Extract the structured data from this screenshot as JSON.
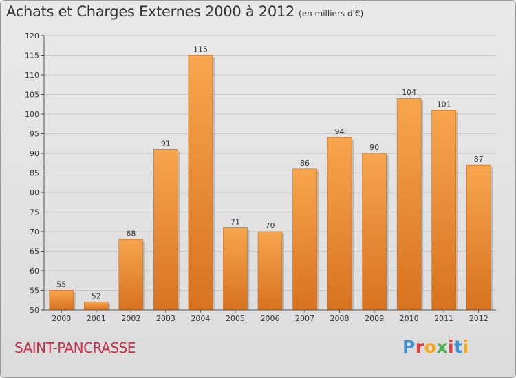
{
  "header": {
    "title": "Achats et Charges Externes 2000 à 2012",
    "unit": "(en milliers d'€)"
  },
  "footer": {
    "city": "SAINT-PANCRASSE",
    "logo": {
      "text": "Proxiti",
      "colors": [
        "#3a8fd6",
        "#e23b3b",
        "#f5a623",
        "#4caf50",
        "#e23b3b",
        "#3a8fd6",
        "#f5a623"
      ]
    }
  },
  "colors": {
    "bar_top": "#f7a64e",
    "bar_bottom": "#d8721f",
    "bar_shadow": "#9a9a9a",
    "grid": "#c9c9c9",
    "axis_text": "#333333"
  },
  "chart_data": {
    "type": "bar",
    "categories": [
      "2000",
      "2001",
      "2002",
      "2003",
      "2004",
      "2005",
      "2006",
      "2007",
      "2008",
      "2009",
      "2010",
      "2011",
      "2012"
    ],
    "values": [
      55,
      52,
      68,
      91,
      115,
      71,
      70,
      86,
      94,
      90,
      104,
      101,
      87
    ],
    "ylim": [
      50,
      120
    ],
    "ytick_step": 5,
    "grid": true,
    "value_labels": true
  }
}
